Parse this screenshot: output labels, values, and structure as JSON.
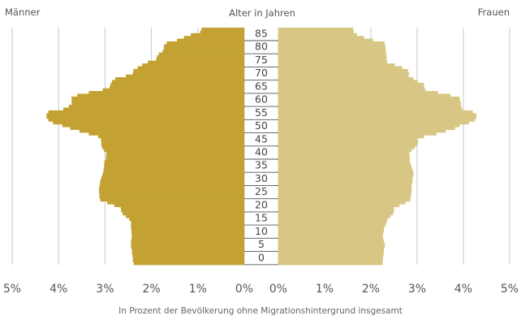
{
  "chart_data": {
    "type": "bar",
    "title": "Alter in Jahren",
    "subtitle": "",
    "xlabel": "In Prozent der Bevölkerung ohne Migrationshintergrund insgesamt",
    "left_label": "Männer",
    "right_label": "Frauen",
    "xlim": [
      0,
      5
    ],
    "x_ticks": [
      "5%",
      "4%",
      "3%",
      "2%",
      "1%",
      "0%",
      "0%",
      "1%",
      "2%",
      "3%",
      "4%",
      "5%"
    ],
    "grid": true,
    "age_labels": [
      "85",
      "80",
      "75",
      "70",
      "65",
      "60",
      "55",
      "50",
      "45",
      "40",
      "35",
      "30",
      "25",
      "20",
      "15",
      "10",
      "5",
      "0"
    ],
    "categories": [
      "0",
      "",
      "",
      "",
      "",
      "5",
      "",
      "",
      "",
      "",
      "10",
      "",
      "",
      "",
      "",
      "15",
      "",
      "",
      "",
      "",
      "20",
      "",
      "",
      "",
      "",
      "25",
      "",
      "",
      "",
      "",
      "30",
      "",
      "",
      "",
      "",
      "35",
      "",
      "",
      "",
      "",
      "40",
      "",
      "",
      "",
      "",
      "45",
      "",
      "",
      "",
      "",
      "50",
      "",
      "",
      "",
      "",
      "55",
      "",
      "",
      "",
      "",
      "60",
      "",
      "",
      "",
      "",
      "65",
      "",
      "",
      "",
      "",
      "70",
      "",
      "",
      "",
      "",
      "75",
      "",
      "",
      "",
      "",
      "80",
      "",
      "",
      "",
      "",
      "85"
    ],
    "series": [
      {
        "name": "Männer",
        "color": "#c3a233",
        "values": [
          2.38,
          2.4,
          2.4,
          2.41,
          2.42,
          2.42,
          2.44,
          2.44,
          2.44,
          2.43,
          2.42,
          2.43,
          2.43,
          2.44,
          2.44,
          2.44,
          2.48,
          2.55,
          2.62,
          2.65,
          2.66,
          2.8,
          2.95,
          3.1,
          3.12,
          3.12,
          3.13,
          3.13,
          3.12,
          3.11,
          3.1,
          3.08,
          3.06,
          3.04,
          3.03,
          3.02,
          3.02,
          3.01,
          2.98,
          2.98,
          2.97,
          3.02,
          3.06,
          3.08,
          3.08,
          3.09,
          3.15,
          3.35,
          3.55,
          3.75,
          3.92,
          4.12,
          4.22,
          4.26,
          4.26,
          4.22,
          3.9,
          3.78,
          3.72,
          3.72,
          3.72,
          3.6,
          3.35,
          3.05,
          2.9,
          2.88,
          2.85,
          2.78,
          2.55,
          2.4,
          2.39,
          2.3,
          2.2,
          2.08,
          1.9,
          1.88,
          1.84,
          1.76,
          1.73,
          1.73,
          1.67,
          1.45,
          1.3,
          1.15,
          0.95,
          0.92
        ]
      },
      {
        "name": "Frauen",
        "color": "#d8c684",
        "values": [
          2.25,
          2.26,
          2.26,
          2.27,
          2.28,
          2.28,
          2.3,
          2.3,
          2.28,
          2.27,
          2.26,
          2.27,
          2.28,
          2.29,
          2.32,
          2.34,
          2.36,
          2.42,
          2.48,
          2.5,
          2.5,
          2.62,
          2.75,
          2.85,
          2.86,
          2.87,
          2.88,
          2.88,
          2.88,
          2.89,
          2.9,
          2.9,
          2.92,
          2.92,
          2.9,
          2.88,
          2.86,
          2.84,
          2.84,
          2.84,
          2.83,
          2.88,
          2.95,
          2.99,
          3.02,
          3.02,
          3.15,
          3.42,
          3.62,
          3.82,
          3.92,
          4.12,
          4.25,
          4.28,
          4.28,
          4.2,
          3.98,
          3.95,
          3.95,
          3.93,
          3.92,
          3.72,
          3.45,
          3.18,
          3.15,
          3.15,
          3.02,
          2.92,
          2.82,
          2.82,
          2.8,
          2.68,
          2.52,
          2.35,
          2.34,
          2.34,
          2.33,
          2.32,
          2.32,
          2.31,
          2.3,
          2.05,
          1.85,
          1.7,
          1.63,
          1.62
        ]
      }
    ]
  }
}
